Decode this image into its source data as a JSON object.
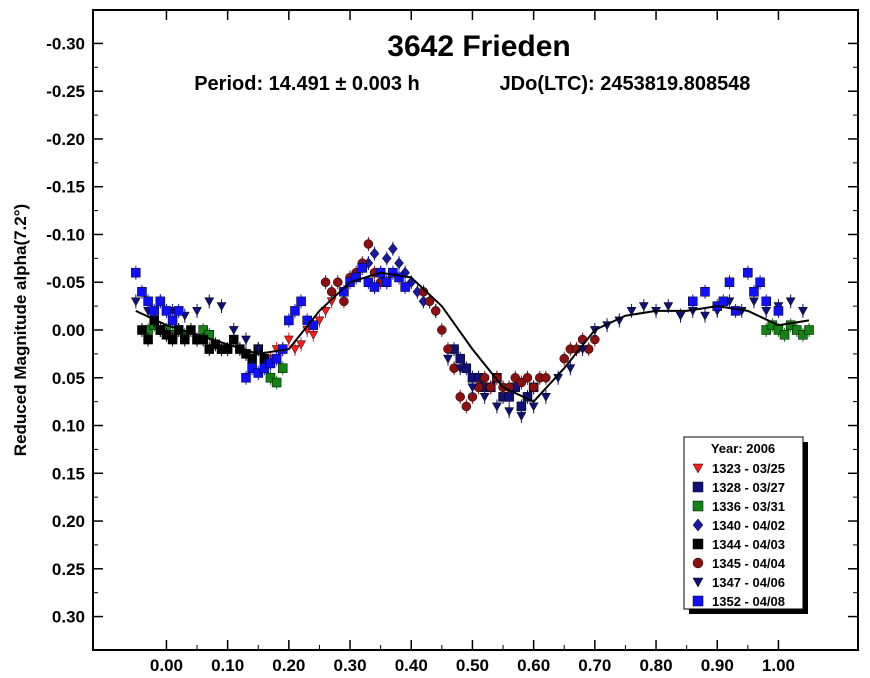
{
  "chart_data": {
    "type": "scatter",
    "title": "3642 Frieden",
    "subtitle_period": "Period: 14.491 ± 0.003 h",
    "subtitle_epoch": "JDo(LTC): 2453819.808548",
    "ylabel": "Reduced Magnitude alpha(7.2°)",
    "xlabel": "",
    "xlim": [
      -0.12,
      1.13
    ],
    "ylim": [
      -0.335,
      0.335
    ],
    "y_inverted": true,
    "grid": false,
    "legend_placement": "bottom-right",
    "xticks": [
      {
        "v": 0.0,
        "label": "0.00"
      },
      {
        "v": 0.1,
        "label": "0.10"
      },
      {
        "v": 0.2,
        "label": "0.20"
      },
      {
        "v": 0.3,
        "label": "0.30"
      },
      {
        "v": 0.4,
        "label": "0.40"
      },
      {
        "v": 0.5,
        "label": "0.50"
      },
      {
        "v": 0.6,
        "label": "0.60"
      },
      {
        "v": 0.7,
        "label": "0.70"
      },
      {
        "v": 0.8,
        "label": "0.80"
      },
      {
        "v": 0.9,
        "label": "0.90"
      },
      {
        "v": 1.0,
        "label": "1.00"
      }
    ],
    "yticks": [
      {
        "v": -0.3,
        "label": "-0.30"
      },
      {
        "v": -0.25,
        "label": "-0.25"
      },
      {
        "v": -0.2,
        "label": "-0.20"
      },
      {
        "v": -0.15,
        "label": "-0.15"
      },
      {
        "v": -0.1,
        "label": "-0.10"
      },
      {
        "v": -0.05,
        "label": "-0.05"
      },
      {
        "v": 0.0,
        "label": "0.00"
      },
      {
        "v": 0.05,
        "label": "0.05"
      },
      {
        "v": 0.1,
        "label": "0.10"
      },
      {
        "v": 0.15,
        "label": "0.15"
      },
      {
        "v": 0.2,
        "label": "0.20"
      },
      {
        "v": 0.25,
        "label": "0.25"
      },
      {
        "v": 0.3,
        "label": "0.30"
      }
    ],
    "fit_curve": {
      "x": [
        -0.05,
        0.0,
        0.05,
        0.1,
        0.15,
        0.2,
        0.25,
        0.3,
        0.35,
        0.4,
        0.45,
        0.5,
        0.55,
        0.6,
        0.65,
        0.7,
        0.75,
        0.8,
        0.85,
        0.9,
        0.95,
        1.0,
        1.05
      ],
      "y": [
        -0.02,
        -0.005,
        0.005,
        0.015,
        0.025,
        0.02,
        -0.02,
        -0.05,
        -0.06,
        -0.055,
        -0.025,
        0.02,
        0.06,
        0.075,
        0.04,
        0.0,
        -0.015,
        -0.02,
        -0.02,
        -0.025,
        -0.02,
        -0.005,
        -0.01
      ]
    },
    "legend_title": "Year: 2006",
    "series": [
      {
        "name": "1323 - 03/25",
        "marker": "triangle-down",
        "color": "#ff1a1a",
        "x": [
          0.17,
          0.18,
          0.19,
          0.2,
          0.21,
          0.22,
          0.23,
          0.24,
          0.25,
          0.26,
          0.27
        ],
        "y": [
          0.03,
          0.02,
          0.02,
          0.01,
          0.02,
          0.015,
          0.0,
          0.005,
          -0.01,
          -0.02,
          -0.03
        ]
      },
      {
        "name": "1328 - 03/27",
        "marker": "square",
        "color": "#10107a",
        "x": [
          0.47,
          0.48,
          0.49,
          0.5,
          0.51,
          0.52,
          0.53,
          0.54,
          0.55,
          0.56,
          0.57,
          0.58,
          0.59,
          0.6
        ],
        "y": [
          0.02,
          0.03,
          0.04,
          0.05,
          0.05,
          0.06,
          0.06,
          0.05,
          0.07,
          0.07,
          0.06,
          0.08,
          0.07,
          0.06
        ]
      },
      {
        "name": "1336 - 03/31",
        "marker": "square",
        "color": "#148214",
        "x": [
          -0.03,
          -0.02,
          -0.01,
          0.0,
          0.01,
          0.02,
          0.03,
          0.05,
          0.06,
          0.07,
          0.17,
          0.18,
          0.19,
          0.98,
          0.99,
          1.0,
          1.01,
          1.02,
          1.03,
          1.04,
          1.05
        ],
        "y": [
          0.0,
          -0.005,
          0.0,
          0.0,
          0.005,
          0.0,
          0.005,
          0.01,
          0.0,
          0.005,
          0.05,
          0.055,
          0.04,
          0.0,
          -0.005,
          0.0,
          0.005,
          -0.005,
          0.0,
          0.005,
          0.0
        ]
      },
      {
        "name": "1340 - 04/02",
        "marker": "diamond",
        "color": "#1a1aa0",
        "x": [
          0.33,
          0.34,
          0.35,
          0.36,
          0.37,
          0.38,
          0.39,
          0.4,
          0.41,
          0.42,
          0.43,
          0.44
        ],
        "y": [
          -0.07,
          -0.08,
          -0.06,
          -0.075,
          -0.085,
          -0.07,
          -0.06,
          -0.05,
          -0.04,
          -0.03,
          -0.03,
          -0.02
        ]
      },
      {
        "name": "1344 - 04/03",
        "marker": "square",
        "color": "#000000",
        "x": [
          -0.04,
          -0.03,
          -0.02,
          -0.01,
          0.0,
          0.01,
          0.02,
          0.03,
          0.04,
          0.05,
          0.06,
          0.07,
          0.08,
          0.09,
          0.1,
          0.11,
          0.12,
          0.13,
          0.14,
          0.15,
          0.16
        ],
        "y": [
          0.0,
          0.01,
          -0.01,
          0.0,
          0.005,
          0.01,
          0.0,
          0.01,
          0.0,
          0.01,
          0.01,
          0.02,
          0.015,
          0.02,
          0.02,
          0.01,
          0.02,
          0.025,
          0.03,
          0.02,
          0.03
        ]
      },
      {
        "name": "1345 - 04/04",
        "marker": "circle",
        "color": "#8b1010",
        "x": [
          0.26,
          0.27,
          0.28,
          0.29,
          0.3,
          0.31,
          0.32,
          0.33,
          0.34,
          0.35,
          0.36,
          0.42,
          0.43,
          0.44,
          0.45,
          0.46,
          0.47,
          0.48,
          0.49,
          0.5,
          0.51,
          0.52,
          0.53,
          0.54,
          0.55,
          0.56,
          0.57,
          0.58,
          0.59,
          0.6,
          0.61,
          0.62,
          0.65,
          0.66,
          0.67,
          0.68,
          0.69,
          0.7
        ],
        "y": [
          -0.05,
          -0.04,
          -0.05,
          -0.03,
          -0.055,
          -0.06,
          -0.07,
          -0.09,
          -0.06,
          -0.05,
          -0.05,
          -0.04,
          -0.03,
          -0.02,
          0.0,
          0.02,
          0.04,
          0.07,
          0.08,
          0.07,
          0.06,
          0.05,
          0.06,
          0.05,
          0.06,
          0.06,
          0.05,
          0.055,
          0.05,
          0.06,
          0.05,
          0.05,
          0.03,
          0.02,
          0.02,
          0.01,
          0.02,
          0.01
        ]
      },
      {
        "name": "1347 - 04/06",
        "marker": "triangle-down",
        "color": "#10107a",
        "x": [
          -0.05,
          -0.03,
          -0.01,
          0.01,
          0.03,
          0.05,
          0.07,
          0.09,
          0.11,
          0.13,
          0.15,
          0.46,
          0.48,
          0.5,
          0.52,
          0.54,
          0.56,
          0.58,
          0.6,
          0.62,
          0.64,
          0.66,
          0.68,
          0.7,
          0.72,
          0.74,
          0.76,
          0.78,
          0.8,
          0.82,
          0.84,
          0.86,
          0.88,
          0.9,
          0.92,
          0.94,
          0.96,
          0.98,
          1.0,
          1.02,
          1.04
        ],
        "y": [
          -0.03,
          -0.02,
          -0.03,
          -0.02,
          -0.015,
          -0.02,
          -0.03,
          -0.025,
          0.0,
          0.01,
          0.02,
          0.03,
          0.04,
          0.06,
          0.07,
          0.08,
          0.085,
          0.09,
          0.08,
          0.07,
          0.05,
          0.04,
          0.02,
          0.0,
          -0.005,
          -0.01,
          -0.02,
          -0.025,
          -0.02,
          -0.025,
          -0.015,
          -0.02,
          -0.015,
          -0.02,
          -0.03,
          -0.02,
          -0.03,
          -0.02,
          -0.025,
          -0.03,
          -0.02
        ]
      },
      {
        "name": "1352 - 04/08",
        "marker": "square",
        "color": "#1010ff",
        "x": [
          -0.05,
          -0.04,
          -0.03,
          -0.02,
          -0.01,
          0.0,
          0.01,
          0.02,
          0.13,
          0.14,
          0.15,
          0.16,
          0.17,
          0.18,
          0.19,
          0.2,
          0.21,
          0.22,
          0.23,
          0.24,
          0.29,
          0.3,
          0.31,
          0.32,
          0.33,
          0.34,
          0.35,
          0.36,
          0.37,
          0.38,
          0.39,
          0.86,
          0.88,
          0.9,
          0.91,
          0.92,
          0.93,
          0.95,
          0.96,
          0.97,
          0.98,
          1.0
        ],
        "y": [
          -0.06,
          -0.04,
          -0.03,
          -0.02,
          -0.03,
          -0.02,
          -0.01,
          -0.02,
          0.05,
          0.04,
          0.045,
          0.04,
          0.035,
          0.03,
          0.02,
          -0.01,
          -0.02,
          -0.03,
          -0.01,
          -0.005,
          -0.04,
          -0.05,
          -0.055,
          -0.065,
          -0.05,
          -0.045,
          -0.06,
          -0.05,
          -0.06,
          -0.055,
          -0.045,
          -0.03,
          -0.04,
          -0.025,
          -0.03,
          -0.05,
          -0.02,
          -0.06,
          -0.04,
          -0.05,
          -0.03,
          -0.02
        ]
      }
    ]
  }
}
